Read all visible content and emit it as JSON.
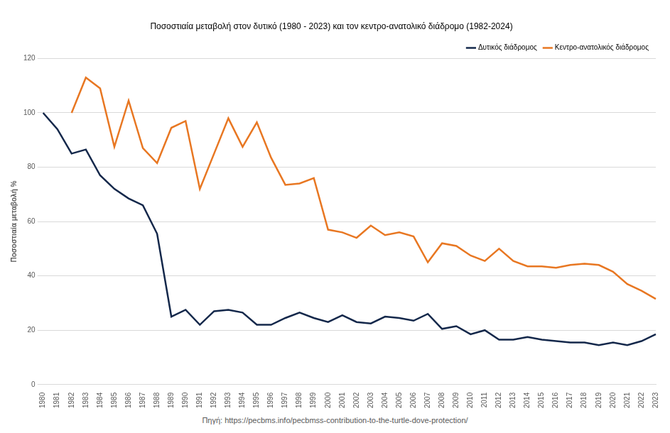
{
  "chart_data": {
    "type": "line",
    "title": "Ποσοστιαία μεταβολή στον δυτικό (1980 - 2023) και τον κεντρο-ανατολικό διάδρομο (1982-2024)",
    "y_label": "Ποσοστιαία μεταβολή %",
    "source": "Πηγή: https://pecbms.info/pecbmss-contribution-to-the-turtle-dove-protection/",
    "categories": [
      "1980",
      "1981",
      "1982",
      "1983",
      "1984",
      "1985",
      "1986",
      "1987",
      "1988",
      "1989",
      "1990",
      "1991",
      "1992",
      "1993",
      "1994",
      "1995",
      "1996",
      "1997",
      "1998",
      "1999",
      "2000",
      "2001",
      "2002",
      "2003",
      "2004",
      "2005",
      "2006",
      "2007",
      "2008",
      "2009",
      "2010",
      "2011",
      "2012",
      "2013",
      "2014",
      "2015",
      "2016",
      "2017",
      "2018",
      "2019",
      "2020",
      "2021",
      "2022",
      "2023"
    ],
    "series": [
      {
        "name": "Δυτικός διάδρομος",
        "color": "#14284b",
        "values": [
          100,
          94,
          85,
          86.5,
          77,
          72,
          68.5,
          66,
          55.5,
          25,
          27.5,
          22,
          27,
          27.5,
          26.5,
          22,
          22,
          24.5,
          26.5,
          24.5,
          23,
          25.5,
          23,
          22.5,
          25,
          24.5,
          23.5,
          26,
          20.5,
          21.5,
          18.5,
          20,
          16.5,
          16.5,
          17.5,
          16.5,
          16,
          15.5,
          15.5,
          14.5,
          15.5,
          14.5,
          16,
          18.5
        ]
      },
      {
        "name": "Κεντρο-ανατολικός διάδρομος",
        "color": "#e87722",
        "values": [
          null,
          null,
          100,
          113,
          109,
          87.5,
          104.5,
          87,
          81.5,
          94.5,
          97,
          72,
          85,
          98,
          87.5,
          96.5,
          83.5,
          73.5,
          74,
          76,
          57,
          56,
          54,
          58.5,
          55,
          56,
          54.5,
          45,
          52,
          51,
          47.5,
          45.5,
          50,
          45.5,
          43.5,
          43.5,
          43,
          44,
          44.5,
          44,
          41.5,
          37,
          34.5,
          31.5
        ]
      }
    ],
    "ylim": [
      0,
      120
    ],
    "yticks": [
      0,
      20,
      40,
      60,
      80,
      100,
      120
    ],
    "grid": true,
    "legend": "top-right"
  }
}
